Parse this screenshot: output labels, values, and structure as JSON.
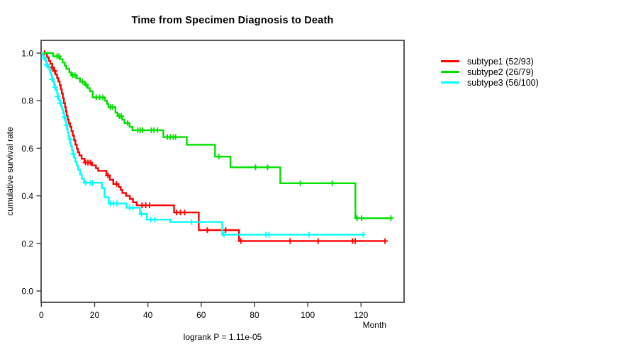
{
  "title": "Time from Specimen Diagnosis to Death",
  "chart_data": {
    "type": "line",
    "subtype": "kaplan-meier-survival-steps",
    "title": "Time from Specimen Diagnosis to Death",
    "xlabel": "Month",
    "ylabel": "cumulative survival rate",
    "annotation": "logrank P = 1.11e-05",
    "xlim": [
      0,
      136
    ],
    "ylim": [
      0.0,
      1.0
    ],
    "xticks": [
      0,
      20,
      40,
      60,
      80,
      100,
      120
    ],
    "yticks": [
      "0.0",
      "0.2",
      "0.4",
      "0.6",
      "0.8",
      "1.0"
    ],
    "grid": false,
    "legend_position": "right-outside",
    "censor_mark_glyph": "plus",
    "series": [
      {
        "name": "subtype1",
        "label": "subtype1 (52/93)",
        "events": 52,
        "total": 93,
        "color": "#ff0000",
        "end_month": 129,
        "steps": [
          [
            0,
            1
          ],
          [
            2.1,
            0.982
          ],
          [
            2.8,
            0.968
          ],
          [
            3.4,
            0.955
          ],
          [
            4.1,
            0.94
          ],
          [
            4.7,
            0.925
          ],
          [
            5.3,
            0.91
          ],
          [
            5.9,
            0.895
          ],
          [
            6.4,
            0.88
          ],
          [
            6.9,
            0.865
          ],
          [
            7.3,
            0.848
          ],
          [
            7.7,
            0.83
          ],
          [
            8.1,
            0.81
          ],
          [
            8.5,
            0.79
          ],
          [
            8.9,
            0.773
          ],
          [
            9.2,
            0.755
          ],
          [
            9.5,
            0.737
          ],
          [
            9.9,
            0.72
          ],
          [
            10.3,
            0.705
          ],
          [
            10.8,
            0.69
          ],
          [
            11.3,
            0.672
          ],
          [
            11.8,
            0.653
          ],
          [
            12.3,
            0.634
          ],
          [
            12.8,
            0.615
          ],
          [
            13.3,
            0.598
          ],
          [
            13.7,
            0.583
          ],
          [
            14.3,
            0.57
          ],
          [
            15.1,
            0.556
          ],
          [
            16.2,
            0.54
          ],
          [
            19,
            0.528
          ],
          [
            20.5,
            0.516
          ],
          [
            21.3,
            0.505
          ],
          [
            24.4,
            0.486
          ],
          [
            25.7,
            0.468
          ],
          [
            27,
            0.45
          ],
          [
            29,
            0.437
          ],
          [
            29.8,
            0.425
          ],
          [
            30.4,
            0.412
          ],
          [
            31.8,
            0.4
          ],
          [
            33.2,
            0.387
          ],
          [
            34.4,
            0.373
          ],
          [
            35.8,
            0.36
          ],
          [
            49.8,
            0.33
          ],
          [
            59.1,
            0.256
          ],
          [
            74.2,
            0.21
          ]
        ],
        "censor_marks": [
          [
            1.2,
            1
          ],
          [
            4,
            0.94
          ],
          [
            5,
            0.925
          ],
          [
            16.6,
            0.54
          ],
          [
            17.5,
            0.54
          ],
          [
            18.4,
            0.54
          ],
          [
            25,
            0.486
          ],
          [
            28.2,
            0.45
          ],
          [
            37.8,
            0.36
          ],
          [
            39.2,
            0.36
          ],
          [
            40.6,
            0.36
          ],
          [
            50.8,
            0.33
          ],
          [
            52.2,
            0.33
          ],
          [
            53.8,
            0.33
          ],
          [
            62.3,
            0.256
          ],
          [
            69.2,
            0.256
          ],
          [
            74.9,
            0.21
          ],
          [
            93.4,
            0.21
          ],
          [
            103.9,
            0.21
          ],
          [
            116.8,
            0.21
          ],
          [
            117.8,
            0.21
          ],
          [
            129,
            0.21
          ]
        ]
      },
      {
        "name": "subtype2",
        "label": "subtype2 (26/79)",
        "events": 26,
        "total": 79,
        "color": "#00e000",
        "end_month": 131.2,
        "steps": [
          [
            0,
            1
          ],
          [
            4.4,
            0.987
          ],
          [
            7,
            0.974
          ],
          [
            8,
            0.96
          ],
          [
            8.8,
            0.947
          ],
          [
            9.4,
            0.934
          ],
          [
            10.5,
            0.92
          ],
          [
            11.2,
            0.907
          ],
          [
            13.2,
            0.894
          ],
          [
            14.5,
            0.88
          ],
          [
            16.2,
            0.867
          ],
          [
            17.4,
            0.853
          ],
          [
            18.2,
            0.84
          ],
          [
            19.3,
            0.814
          ],
          [
            23.9,
            0.8
          ],
          [
            24.6,
            0.787
          ],
          [
            25.2,
            0.773
          ],
          [
            27.8,
            0.75
          ],
          [
            28.6,
            0.735
          ],
          [
            30.4,
            0.72
          ],
          [
            31.2,
            0.706
          ],
          [
            33.1,
            0.69
          ],
          [
            34.2,
            0.676
          ],
          [
            45.8,
            0.647
          ],
          [
            54.6,
            0.615
          ],
          [
            65.2,
            0.565
          ],
          [
            71,
            0.52
          ],
          [
            89.7,
            0.453
          ],
          [
            117.9,
            0.306
          ]
        ],
        "censor_marks": [
          [
            5.9,
            0.987
          ],
          [
            6.6,
            0.987
          ],
          [
            11.8,
            0.907
          ],
          [
            12.6,
            0.907
          ],
          [
            15.4,
            0.88
          ],
          [
            16.8,
            0.867
          ],
          [
            20.6,
            0.814
          ],
          [
            21.9,
            0.814
          ],
          [
            23.1,
            0.814
          ],
          [
            25.9,
            0.773
          ],
          [
            26.7,
            0.773
          ],
          [
            29.3,
            0.735
          ],
          [
            30,
            0.735
          ],
          [
            32.4,
            0.706
          ],
          [
            36.2,
            0.676
          ],
          [
            37.1,
            0.676
          ],
          [
            38,
            0.676
          ],
          [
            41.3,
            0.676
          ],
          [
            42.3,
            0.676
          ],
          [
            43.6,
            0.676
          ],
          [
            47.3,
            0.647
          ],
          [
            48.4,
            0.647
          ],
          [
            49.5,
            0.647
          ],
          [
            50.4,
            0.647
          ],
          [
            66.6,
            0.565
          ],
          [
            80.4,
            0.52
          ],
          [
            84.9,
            0.52
          ],
          [
            97.2,
            0.453
          ],
          [
            109.2,
            0.453
          ],
          [
            118.5,
            0.306
          ],
          [
            120.2,
            0.306
          ],
          [
            131.2,
            0.306
          ]
        ]
      },
      {
        "name": "subtype3",
        "label": "subtype3 (56/100)",
        "events": 56,
        "total": 100,
        "color": "#00ffff",
        "end_month": 120.8,
        "steps": [
          [
            0,
            1
          ],
          [
            0.6,
            0.99
          ],
          [
            1,
            0.98
          ],
          [
            1.4,
            0.97
          ],
          [
            1.8,
            0.96
          ],
          [
            2.2,
            0.95
          ],
          [
            2.6,
            0.94
          ],
          [
            3,
            0.93
          ],
          [
            3.3,
            0.92
          ],
          [
            3.6,
            0.91
          ],
          [
            3.9,
            0.9
          ],
          [
            4.2,
            0.89
          ],
          [
            4.5,
            0.88
          ],
          [
            4.8,
            0.868
          ],
          [
            5.1,
            0.856
          ],
          [
            5.5,
            0.844
          ],
          [
            5.9,
            0.832
          ],
          [
            6.2,
            0.818
          ],
          [
            6.6,
            0.804
          ],
          [
            7,
            0.79
          ],
          [
            7.4,
            0.776
          ],
          [
            7.8,
            0.762
          ],
          [
            8.2,
            0.747
          ],
          [
            8.6,
            0.732
          ],
          [
            9,
            0.712
          ],
          [
            9.3,
            0.697
          ],
          [
            9.6,
            0.682
          ],
          [
            9.9,
            0.667
          ],
          [
            10.2,
            0.652
          ],
          [
            10.5,
            0.638
          ],
          [
            10.8,
            0.624
          ],
          [
            11.1,
            0.608
          ],
          [
            11.5,
            0.592
          ],
          [
            11.9,
            0.576
          ],
          [
            12.3,
            0.56
          ],
          [
            12.8,
            0.543
          ],
          [
            13.3,
            0.527
          ],
          [
            13.8,
            0.51
          ],
          [
            14.5,
            0.49
          ],
          [
            15.2,
            0.472
          ],
          [
            16,
            0.455
          ],
          [
            22.7,
            0.432
          ],
          [
            23.7,
            0.394
          ],
          [
            25.3,
            0.368
          ],
          [
            32,
            0.35
          ],
          [
            37,
            0.324
          ],
          [
            39.6,
            0.3
          ],
          [
            48.4,
            0.29
          ],
          [
            67.9,
            0.237
          ]
        ],
        "censor_marks": [
          [
            1.1,
            0.98
          ],
          [
            2,
            0.95
          ],
          [
            4,
            0.89
          ],
          [
            5.2,
            0.856
          ],
          [
            6.1,
            0.818
          ],
          [
            7.1,
            0.79
          ],
          [
            8.7,
            0.732
          ],
          [
            9.4,
            0.697
          ],
          [
            10.7,
            0.638
          ],
          [
            12,
            0.576
          ],
          [
            16.6,
            0.455
          ],
          [
            18.4,
            0.455
          ],
          [
            19.3,
            0.455
          ],
          [
            26,
            0.368
          ],
          [
            27.1,
            0.368
          ],
          [
            28.3,
            0.368
          ],
          [
            33.1,
            0.35
          ],
          [
            34.4,
            0.35
          ],
          [
            37.6,
            0.324
          ],
          [
            41.1,
            0.3
          ],
          [
            42.6,
            0.3
          ],
          [
            56.4,
            0.29
          ],
          [
            68.5,
            0.237
          ],
          [
            84.3,
            0.237
          ],
          [
            85.5,
            0.237
          ],
          [
            100.5,
            0.237
          ],
          [
            120.8,
            0.237
          ]
        ]
      }
    ]
  }
}
